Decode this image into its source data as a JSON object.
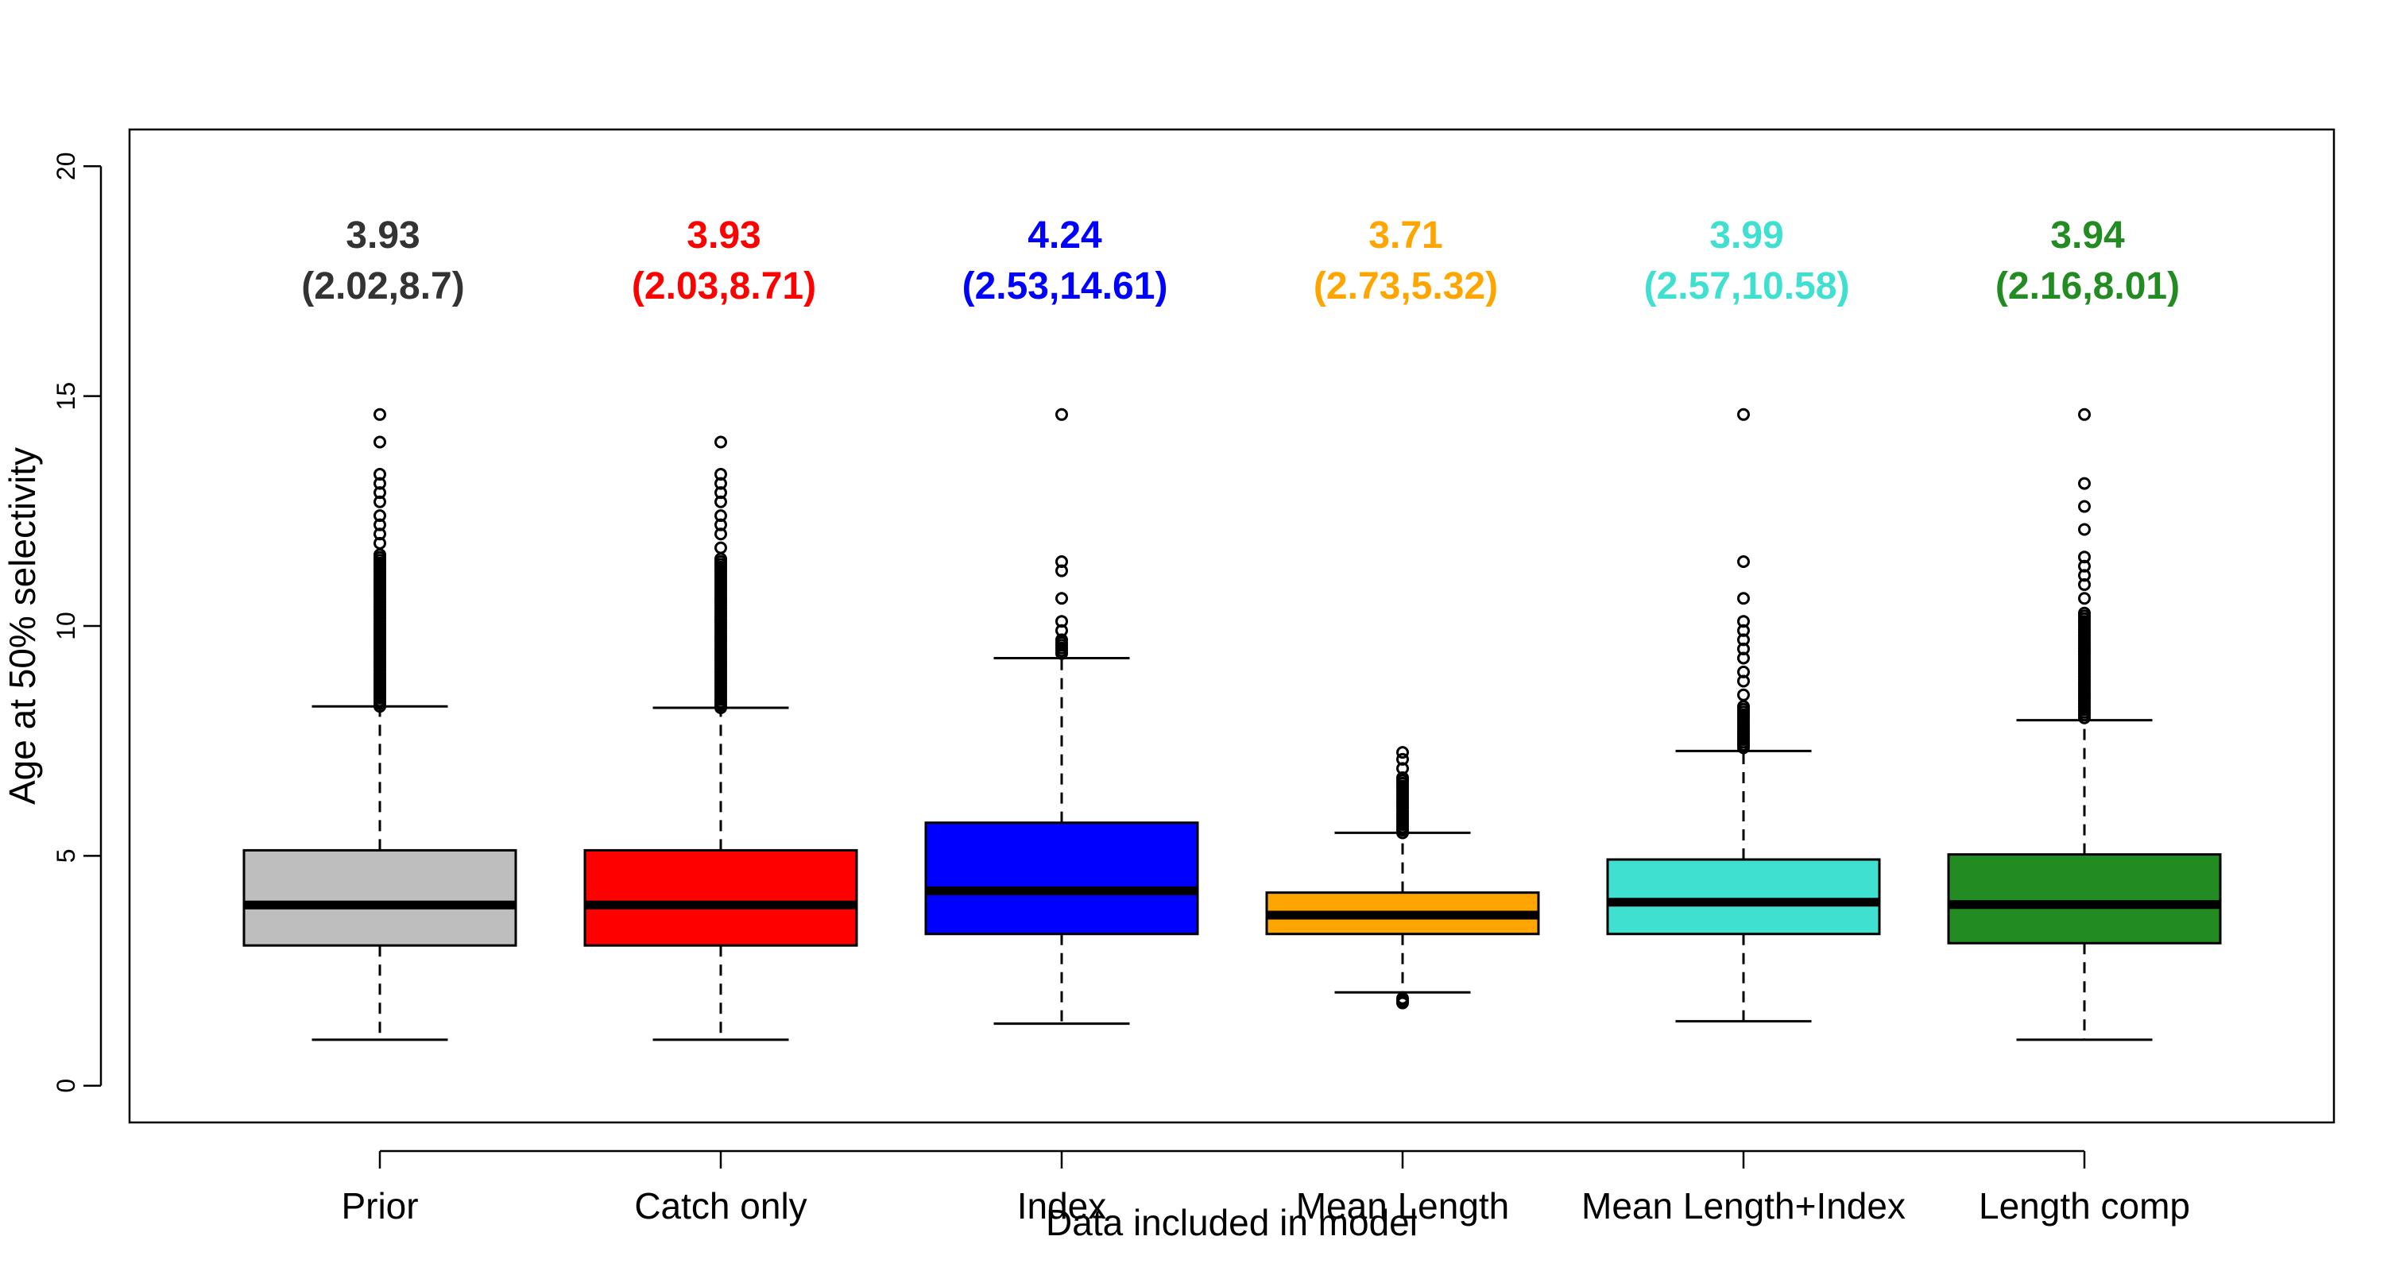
{
  "chart_data": {
    "type": "boxplot",
    "title": "",
    "xlabel": "Data included in model",
    "ylabel": "Age at 50% selectivity",
    "ylim": [
      -0.8,
      20.8
    ],
    "yticks": [
      0,
      5,
      10,
      15,
      20
    ],
    "ytick_labels": [
      "0",
      "5",
      "10",
      "15",
      "20"
    ],
    "grid": false,
    "legend": "none",
    "categories": [
      "Prior",
      "Catch only",
      "Index",
      "Mean Length",
      "Mean Length+Index",
      "Length comp"
    ],
    "series": [
      {
        "category": "Prior",
        "color": "#BEBEBE",
        "annotation_color": "#333333",
        "median_label": "3.93",
        "interval_label": "(2.02,8.7)",
        "whisker_low": 1.0,
        "q1": 3.05,
        "median": 3.93,
        "q3": 5.12,
        "whisker_high": 8.25,
        "outliers_dense_range": [
          8.25,
          11.6
        ],
        "outliers": [
          11.8,
          12.0,
          12.2,
          12.4,
          12.7,
          12.9,
          13.1,
          13.3,
          14.0,
          14.6
        ]
      },
      {
        "category": "Catch only",
        "color": "#FF0000",
        "annotation_color": "#FF0000",
        "median_label": "3.93",
        "interval_label": "(2.03,8.71)",
        "whisker_low": 1.0,
        "q1": 3.05,
        "median": 3.93,
        "q3": 5.12,
        "whisker_high": 8.22,
        "outliers_dense_range": [
          8.22,
          11.5
        ],
        "outliers": [
          11.7,
          12.0,
          12.2,
          12.4,
          12.7,
          12.9,
          13.1,
          13.3,
          14.0
        ]
      },
      {
        "category": "Index",
        "color": "#0000FF",
        "annotation_color": "#0000FF",
        "median_label": "4.24",
        "interval_label": "(2.53,14.61)",
        "whisker_low": 1.35,
        "q1": 3.3,
        "median": 4.24,
        "q3": 5.72,
        "whisker_high": 9.3,
        "outliers_dense_range": [
          9.4,
          9.7
        ],
        "outliers": [
          9.9,
          10.1,
          10.6,
          11.2,
          11.4,
          14.6
        ]
      },
      {
        "category": "Mean Length",
        "color": "#FFA500",
        "annotation_color": "#FFA500",
        "median_label": "3.71",
        "interval_label": "(2.73,5.32)",
        "whisker_low": 2.03,
        "q1": 3.3,
        "median": 3.71,
        "q3": 4.2,
        "whisker_high": 5.5,
        "outliers_dense_range": [
          5.5,
          6.7
        ],
        "outliers": [
          1.8,
          1.85,
          1.9,
          6.9,
          7.1,
          7.25
        ]
      },
      {
        "category": "Mean Length+Index",
        "color": "#40E0D0",
        "annotation_color": "#40E0D0",
        "median_label": "3.99",
        "interval_label": "(2.57,10.58)",
        "whisker_low": 1.4,
        "q1": 3.3,
        "median": 3.99,
        "q3": 4.92,
        "whisker_high": 7.28,
        "outliers_dense_range": [
          7.35,
          8.3
        ],
        "outliers": [
          8.5,
          8.8,
          9.0,
          9.3,
          9.5,
          9.7,
          9.9,
          10.1,
          10.6,
          11.4,
          14.6
        ]
      },
      {
        "category": "Length comp",
        "color": "#228B22",
        "annotation_color": "#228B22",
        "median_label": "3.94",
        "interval_label": "(2.16,8.01)",
        "whisker_low": 1.0,
        "q1": 3.1,
        "median": 3.94,
        "q3": 5.03,
        "whisker_high": 7.95,
        "outliers_dense_range": [
          8.0,
          10.3
        ],
        "outliers": [
          10.6,
          10.9,
          11.1,
          11.3,
          11.5,
          12.1,
          12.6,
          13.1,
          14.6
        ]
      }
    ]
  }
}
